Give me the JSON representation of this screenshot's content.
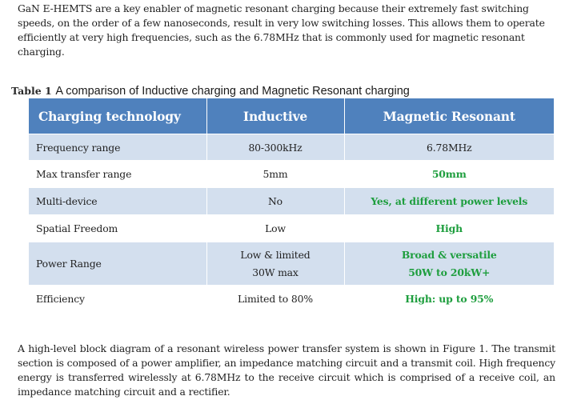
{
  "intro_paragraph": "GaN E-HEMTS are a key enabler of magnetic resonant charging because their extremely fast switching speeds, on the order of a few nanoseconds, result in very low switching losses.  This allows them to operate efficiently at very high frequencies, such as the 6.78MHz that is commonly used for magnetic resonant charging.",
  "table_caption": {
    "label": "Table 1",
    "text": "A comparison of Inductive charging and Magnetic Resonant charging"
  },
  "table": {
    "headers": [
      "Charging technology",
      "Inductive",
      "Magnetic Resonant"
    ],
    "rows": [
      {
        "label": "Frequency range",
        "inductive": "80-300kHz",
        "resonant": "6.78MHz"
      },
      {
        "label": "Max transfer range",
        "inductive": "5mm",
        "resonant": "50mm"
      },
      {
        "label": "Multi-device",
        "inductive": "No",
        "resonant": "Yes, at different power levels"
      },
      {
        "label": "Spatial Freedom",
        "inductive": "Low",
        "resonant": "High"
      },
      {
        "label": "Power Range",
        "inductive_line1": "Low & limited",
        "inductive_line2": "30W max",
        "resonant_line1": "Broad & versatile",
        "resonant_line2": "50W to 20kW+"
      },
      {
        "label": "Efficiency",
        "inductive": "Limited to 80%",
        "resonant": "High: up to 95%"
      }
    ],
    "colors": {
      "header_bg": "#4f81bd",
      "header_text": "#ffffff",
      "shaded_row": "#d3dfee",
      "highlight_text": "#1e9e3e"
    }
  },
  "closing_paragraph": "A high-level block diagram of a resonant wireless power transfer system is shown in Figure 1. The transmit section is composed of a power amplifier, an impedance matching circuit and a transmit coil. High frequency energy is transferred wirelessly at 6.78MHz to the receive circuit which is comprised of a receive coil, an impedance matching circuit and a rectifier."
}
